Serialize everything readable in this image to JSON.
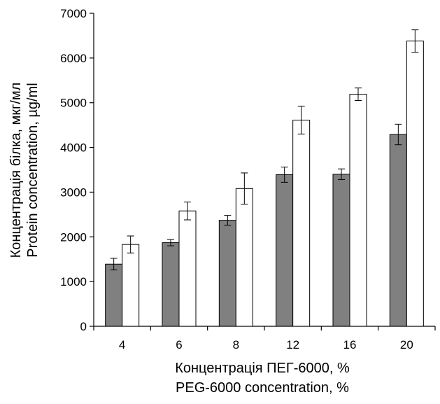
{
  "chart_data": {
    "type": "bar",
    "categories": [
      "4",
      "6",
      "8",
      "12",
      "16",
      "20"
    ],
    "series": [
      {
        "values": [
          1390,
          1870,
          2370,
          3390,
          3400,
          4290
        ],
        "errors": [
          130,
          70,
          110,
          170,
          120,
          230
        ],
        "color": "#808080"
      },
      {
        "values": [
          1830,
          2580,
          3080,
          4610,
          5190,
          6380
        ],
        "errors": [
          190,
          200,
          350,
          310,
          140,
          250
        ],
        "color": "#ffffff"
      }
    ],
    "y_ticks": [
      "0",
      "1000",
      "2000",
      "3000",
      "4000",
      "5000",
      "6000",
      "7000"
    ],
    "ylim": [
      0,
      7000
    ],
    "xlabel_line1": "Концентрація ПЕГ-6000, %",
    "xlabel_line2": "PEG-6000 concentration, %",
    "ylabel_line1": "Концентрація білка, мкг/мл",
    "ylabel_line2": "Protein concentration, µg/ml",
    "grid": false,
    "legend": "none"
  }
}
